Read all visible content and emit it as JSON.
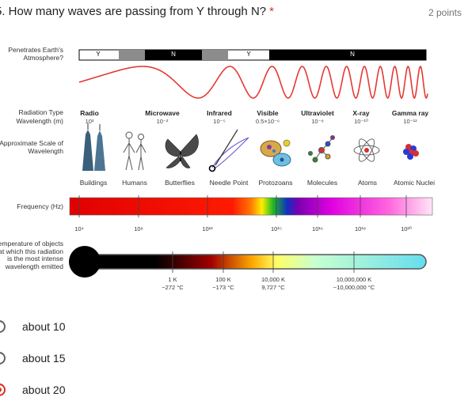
{
  "question": {
    "title": "5. How many waves are passing from Y through N?",
    "required_mark": "*",
    "points": "2 points"
  },
  "figure": {
    "penetrates_label": "Penetrates Earth's Atmosphere?",
    "penetrates_segments": [
      "Y",
      "N",
      "Y",
      "N"
    ],
    "radiation_type_label": "Radiation Type",
    "wavelength_label": "Wavelength (m)",
    "scale_label": "Approximate Scale of Wavelength",
    "frequency_label": "Frequency (Hz)",
    "temperature_label": "Temperature of objects at which this radiation is the most intense wavelength emitted",
    "radiation_types": [
      {
        "name": "Radio",
        "wavelength": "10³"
      },
      {
        "name": "Microwave",
        "wavelength": "10⁻²"
      },
      {
        "name": "Infrared",
        "wavelength": "10⁻⁵"
      },
      {
        "name": "Visible",
        "wavelength": "0.5×10⁻⁶"
      },
      {
        "name": "Ultraviolet",
        "wavelength": "10⁻⁸"
      },
      {
        "name": "X-ray",
        "wavelength": "10⁻¹⁰"
      },
      {
        "name": "Gamma ray",
        "wavelength": "10⁻¹²"
      }
    ],
    "scale_objects": [
      "Buildings",
      "Humans",
      "Butterflies",
      "Needle Point",
      "Protozoans",
      "Molecules",
      "Atoms",
      "Atomic Nuclei"
    ],
    "frequency_ticks": [
      "10⁴",
      "10⁸",
      "10¹²",
      "10¹⁵",
      "10¹⁶",
      "10¹⁸",
      "10²⁰"
    ],
    "temperature_ticks": [
      {
        "k": "1 K",
        "c": "−272 °C"
      },
      {
        "k": "100 K",
        "c": "−173 °C"
      },
      {
        "k": "10,000 K",
        "c": "9,727 °C"
      },
      {
        "k": "10,000,000 K",
        "c": "~10,000,000 °C"
      }
    ]
  },
  "options": [
    {
      "label": "about 10",
      "selected": false
    },
    {
      "label": "about 15",
      "selected": false
    },
    {
      "label": "about 20",
      "selected": true
    }
  ],
  "colors": {
    "accent": "#d93025",
    "wave": "#e53935"
  }
}
